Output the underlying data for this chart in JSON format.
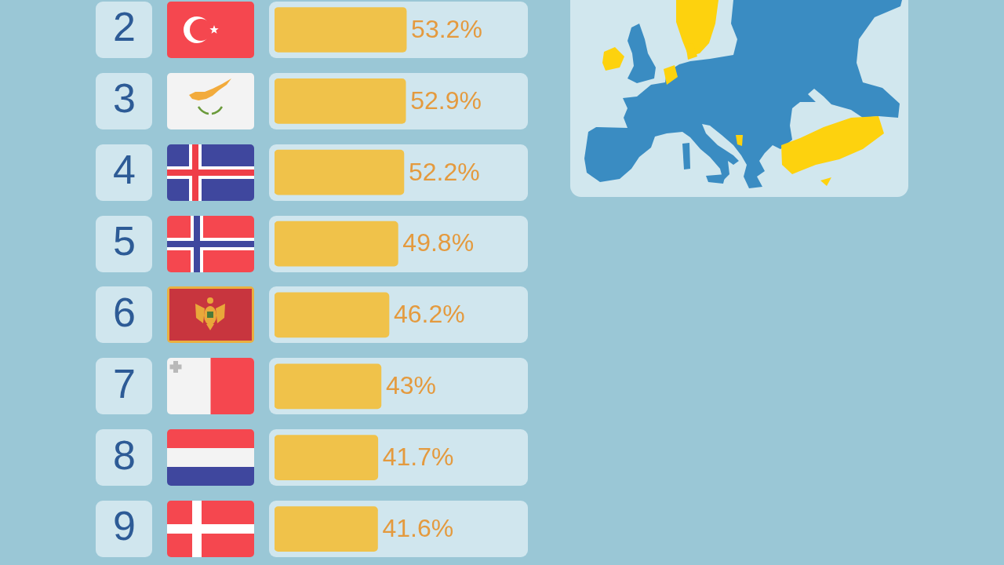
{
  "chart_data": {
    "type": "bar",
    "orientation": "horizontal",
    "categories": [
      "2",
      "3",
      "4",
      "5",
      "6",
      "7",
      "8",
      "9"
    ],
    "values": [
      53.2,
      52.9,
      52.2,
      49.8,
      46.2,
      43,
      41.7,
      41.6
    ],
    "value_labels": [
      "53.2%",
      "52.9%",
      "52.2%",
      "49.8%",
      "46.2%",
      "43%",
      "41.7%",
      "41.6%"
    ],
    "color": "#f0c24a",
    "tick_labels": "y"
  }
}
